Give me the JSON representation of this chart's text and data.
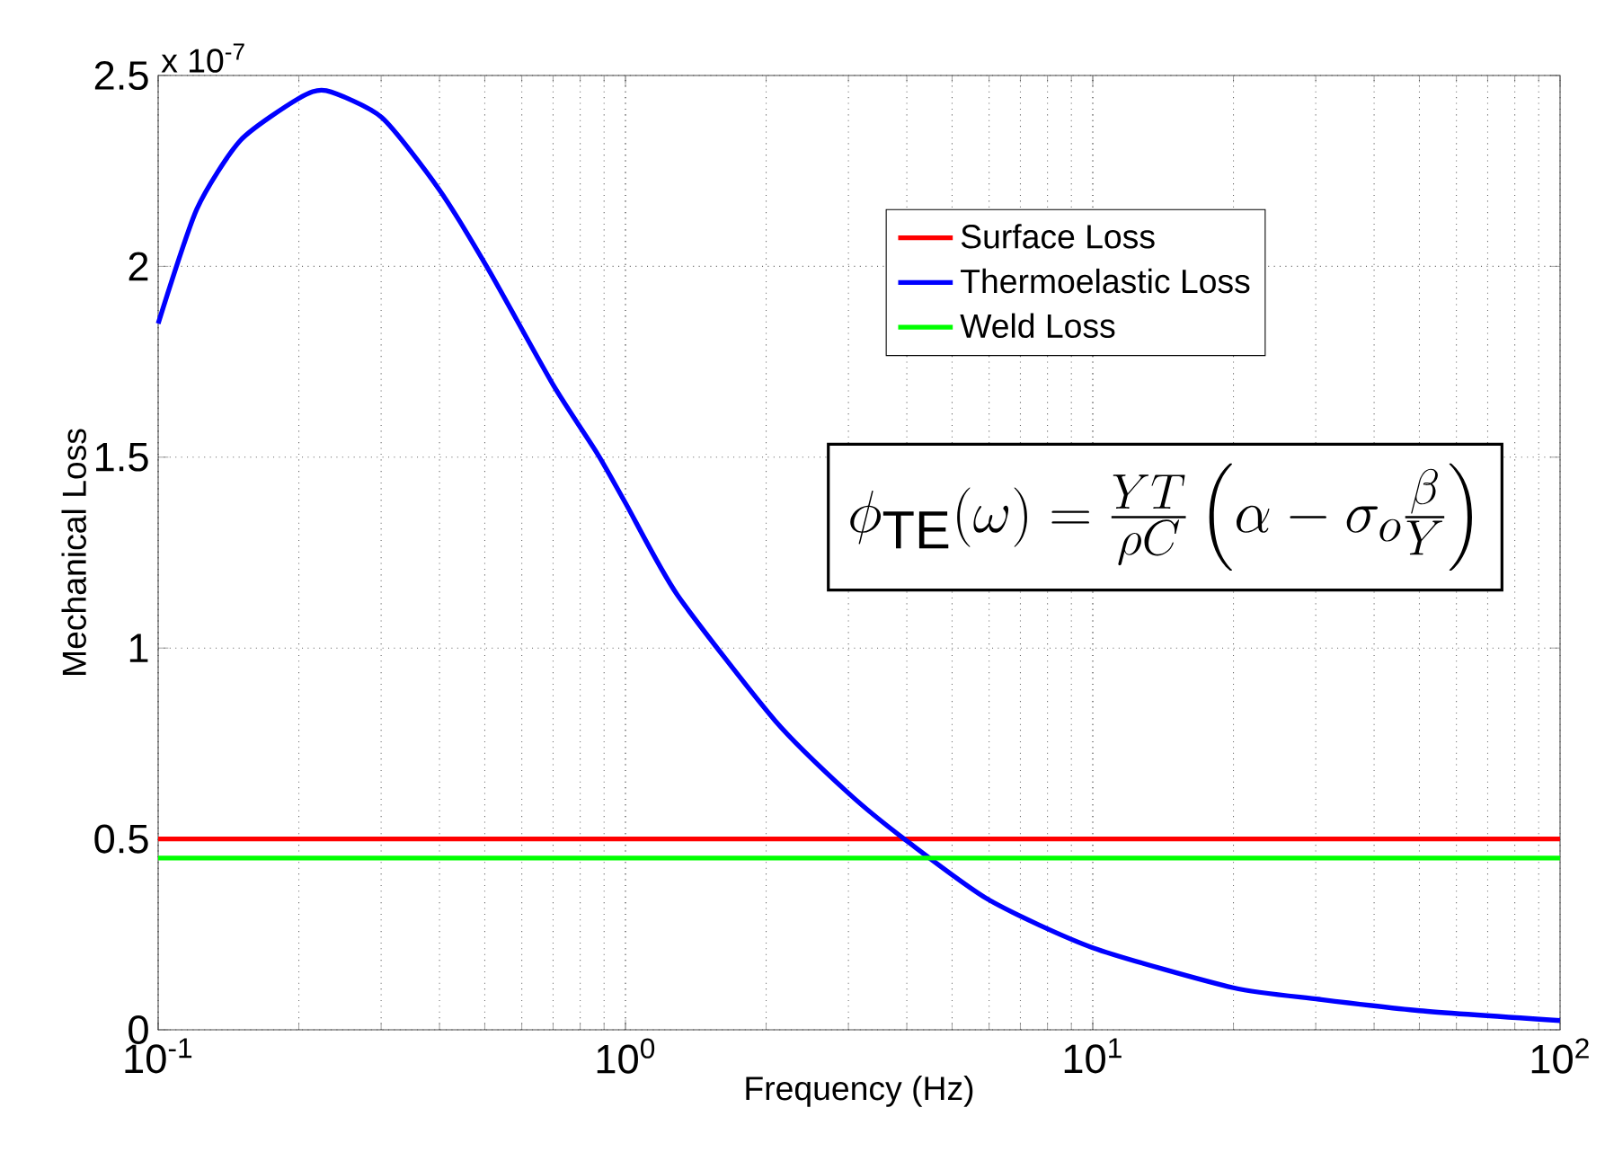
{
  "chart_data": {
    "type": "line",
    "xlabel": "Frequency (Hz)",
    "ylabel": "Mechanical Loss",
    "log": "x",
    "grid": true,
    "legend": "top right",
    "marker": "none",
    "line_style": "solid",
    "xlim": [
      0.1,
      100
    ],
    "ylim": [
      0,
      2.5
    ],
    "xticks": [
      {
        "value": 0.1,
        "label": "10$^{-1}$"
      },
      {
        "value": 1,
        "label": "10$^{0}$"
      },
      {
        "value": 10,
        "label": "10$^{1}$"
      },
      {
        "value": 100,
        "label": "10$^{2}$"
      }
    ],
    "yticks": [
      0,
      0.5,
      1,
      1.5,
      2,
      2.5
    ],
    "series": [
      {
        "name": "Surface Loss",
        "color": "#ff0000",
        "x": [
          0.1,
          100
        ],
        "values": [
          0.5,
          0.5
        ]
      },
      {
        "name": "Thermoelastic Loss",
        "color": "#0000ff",
        "x": [
          0.1,
          0.121,
          0.15,
          0.2,
          0.229,
          0.301,
          0.4,
          0.51,
          0.7,
          0.87,
          1,
          1.29,
          2.09,
          3,
          3.95,
          6,
          10,
          20,
          30.5,
          50,
          100
        ],
        "values": [
          1.85,
          2.15,
          2.33,
          2.44,
          2.46,
          2.39,
          2.2,
          1.99,
          1.69,
          1.51,
          1.38,
          1.14,
          0.81,
          0.62,
          0.5,
          0.34,
          0.215,
          0.11,
          0.08,
          0.05,
          0.024
        ]
      },
      {
        "name": "Weld Loss",
        "color": "#00ff00",
        "x": [
          0.1,
          100
        ],
        "values": [
          0.45,
          0.45
        ]
      }
    ],
    "annotations": [
      "x 10$^{-7}$",
      "\\phi_{\\mathrm{TE}}(\\omega)=\\frac{YT}{\\rho C}\\left(\\alpha-\\sigma_o\\frac{\\beta}{Y}\\right)"
    ]
  }
}
